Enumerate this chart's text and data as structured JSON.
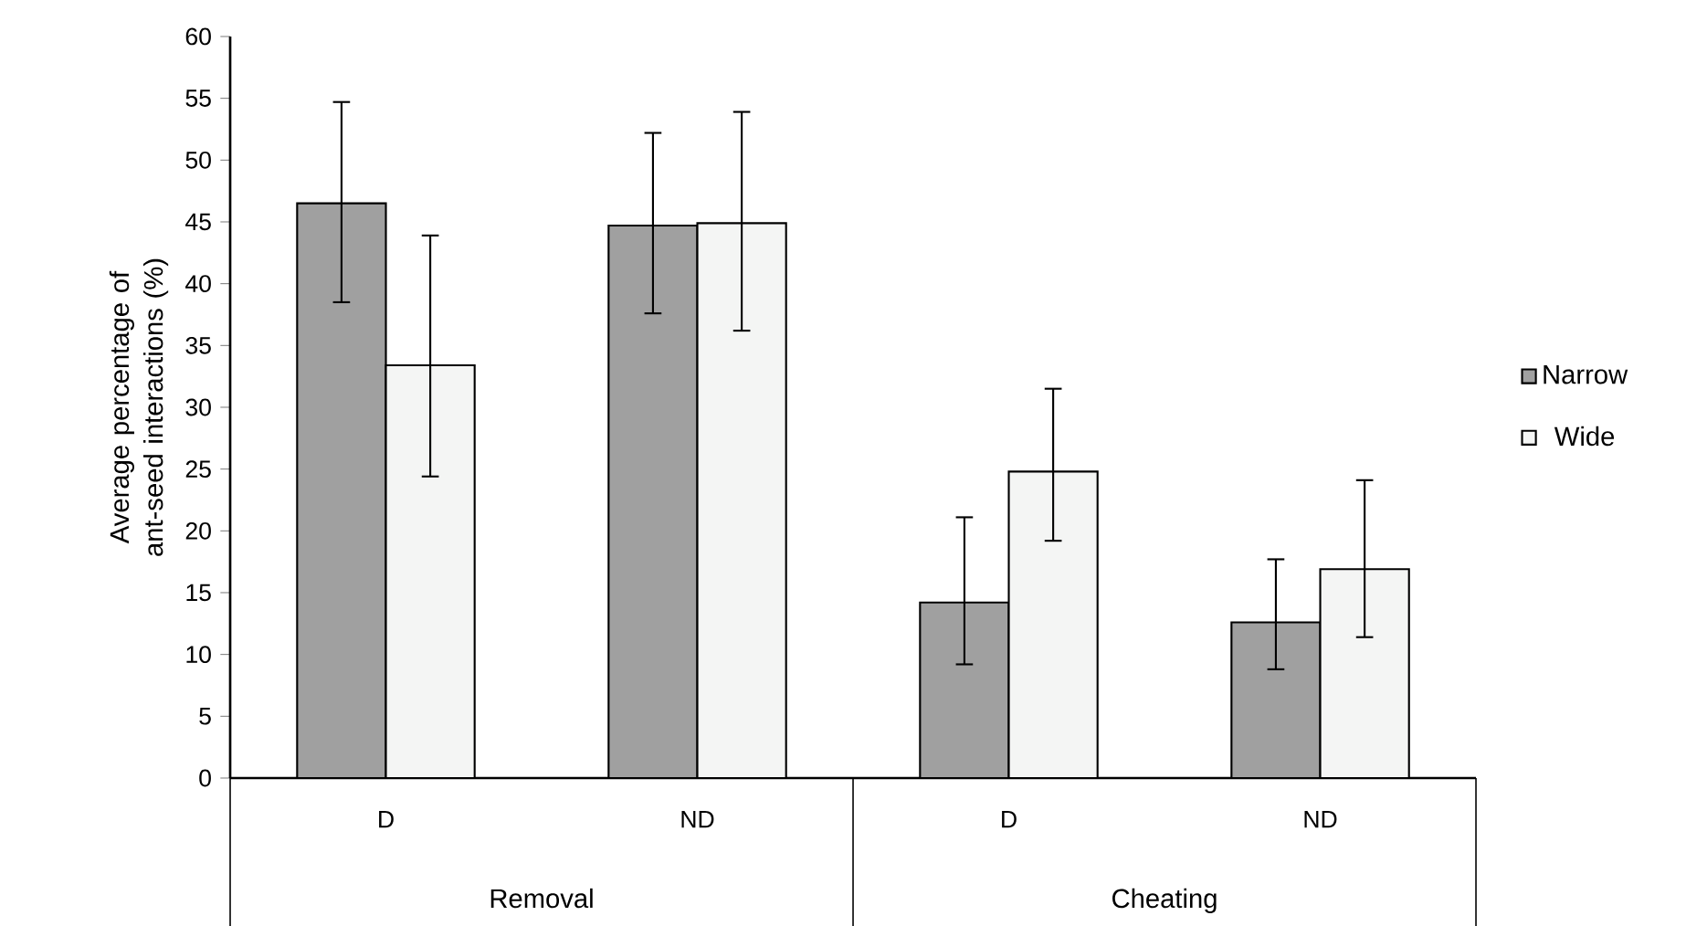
{
  "chart_data": {
    "type": "bar",
    "ylabel": "Average percentage of ant-seed interactions (%)",
    "categories": [
      "D",
      "ND",
      "D",
      "ND"
    ],
    "annotations": [
      "Removal",
      "Cheating"
    ],
    "series": [
      {
        "name": "Narrow",
        "color": "#a0a0a0",
        "values": [
          46.5,
          44.7,
          14.2,
          12.6
        ],
        "errors": [
          [
            38.5,
            54.7
          ],
          [
            37.6,
            52.2
          ],
          [
            9.2,
            21.1
          ],
          [
            8.8,
            17.7
          ]
        ]
      },
      {
        "name": "Wide",
        "color": "#f4f5f4",
        "values": [
          33.4,
          44.9,
          24.8,
          16.9
        ],
        "errors": [
          [
            24.4,
            43.9
          ],
          [
            36.2,
            53.9
          ],
          [
            19.2,
            31.5
          ],
          [
            11.4,
            24.1
          ]
        ]
      }
    ],
    "ylim": [
      0,
      60
    ],
    "yticks": [
      0,
      5,
      10,
      15,
      20,
      25,
      30,
      35,
      40,
      45,
      50,
      55,
      60
    ],
    "legend": "right",
    "grid": false
  }
}
